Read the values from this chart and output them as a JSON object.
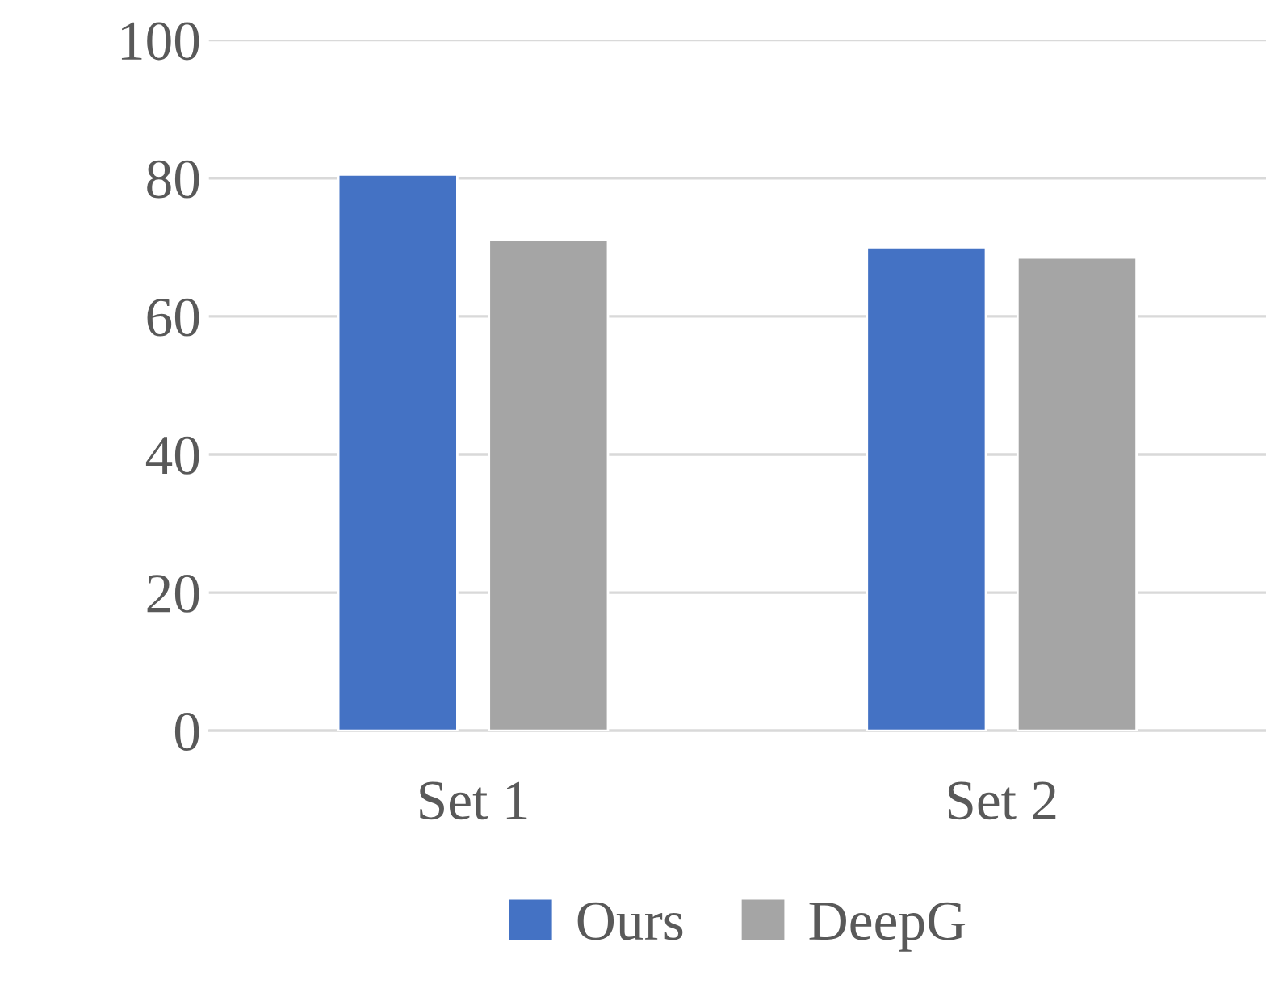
{
  "chart_data": {
    "type": "bar",
    "categories": [
      "Set 1",
      "Set 2"
    ],
    "series": [
      {
        "name": "Ours",
        "color": "#4472c4",
        "values": [
          80.5,
          70
        ]
      },
      {
        "name": "DeepG",
        "color": "#a5a5a5",
        "values": [
          71,
          68.5
        ]
      }
    ],
    "ylim": [
      0,
      100
    ],
    "yticks": [
      0,
      20,
      40,
      60,
      80,
      100
    ],
    "grid": "y",
    "legend": "bottom"
  }
}
